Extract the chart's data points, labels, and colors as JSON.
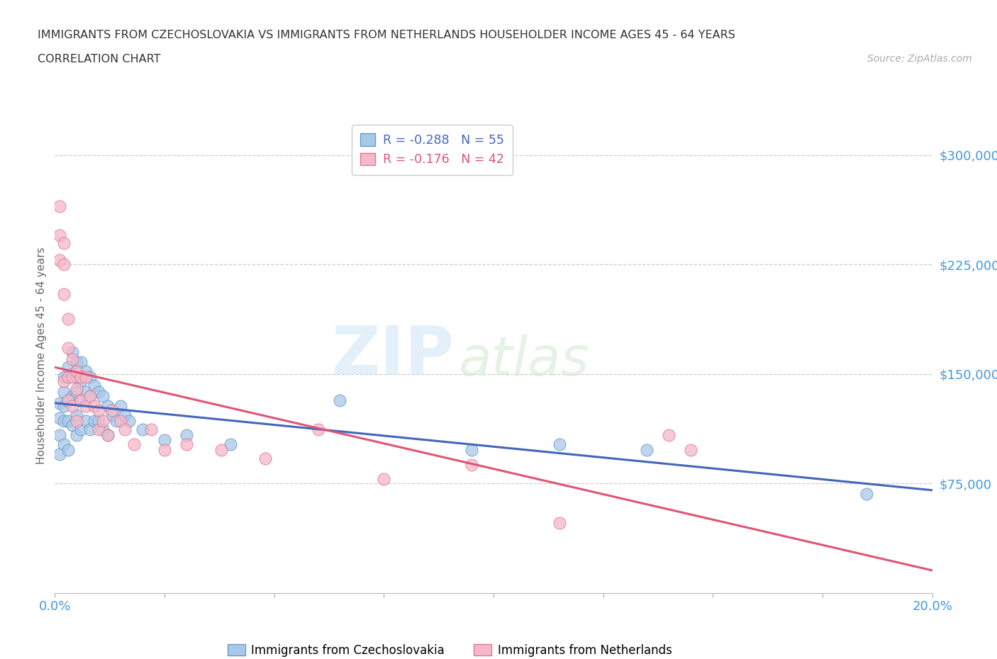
{
  "title_line1": "IMMIGRANTS FROM CZECHOSLOVAKIA VS IMMIGRANTS FROM NETHERLANDS HOUSEHOLDER INCOME AGES 45 - 64 YEARS",
  "title_line2": "CORRELATION CHART",
  "source_text": "Source: ZipAtlas.com",
  "ylabel": "Householder Income Ages 45 - 64 years",
  "xlim": [
    0.0,
    0.2
  ],
  "ylim": [
    0,
    325000
  ],
  "yticks": [
    75000,
    150000,
    225000,
    300000
  ],
  "ytick_labels": [
    "$75,000",
    "$150,000",
    "$225,000",
    "$300,000"
  ],
  "xticks": [
    0.0,
    0.025,
    0.05,
    0.075,
    0.1,
    0.125,
    0.15,
    0.175,
    0.2
  ],
  "xtick_labels_show": [
    "0.0%",
    "20.0%"
  ],
  "series": [
    {
      "name": "Immigrants from Czechoslovakia",
      "R": -0.288,
      "N": 55,
      "color": "#a8c8e8",
      "edge_color": "#6699cc",
      "line_color": "#4466bb",
      "x": [
        0.001,
        0.001,
        0.001,
        0.001,
        0.002,
        0.002,
        0.002,
        0.002,
        0.002,
        0.003,
        0.003,
        0.003,
        0.003,
        0.003,
        0.004,
        0.004,
        0.004,
        0.004,
        0.005,
        0.005,
        0.005,
        0.005,
        0.005,
        0.006,
        0.006,
        0.006,
        0.006,
        0.007,
        0.007,
        0.007,
        0.008,
        0.008,
        0.008,
        0.009,
        0.009,
        0.01,
        0.01,
        0.011,
        0.011,
        0.012,
        0.012,
        0.013,
        0.014,
        0.015,
        0.016,
        0.017,
        0.02,
        0.025,
        0.03,
        0.04,
        0.065,
        0.095,
        0.115,
        0.135,
        0.185
      ],
      "y": [
        130000,
        120000,
        108000,
        95000,
        148000,
        138000,
        128000,
        118000,
        102000,
        155000,
        148000,
        132000,
        118000,
        98000,
        165000,
        150000,
        135000,
        115000,
        158000,
        148000,
        138000,
        122000,
        108000,
        158000,
        145000,
        132000,
        112000,
        152000,
        138000,
        118000,
        148000,
        135000,
        112000,
        142000,
        118000,
        138000,
        118000,
        135000,
        112000,
        128000,
        108000,
        122000,
        118000,
        128000,
        122000,
        118000,
        112000,
        105000,
        108000,
        102000,
        132000,
        98000,
        102000,
        98000,
        68000
      ]
    },
    {
      "name": "Immigrants from Netherlands",
      "R": -0.176,
      "N": 42,
      "color": "#f5b8c8",
      "edge_color": "#dd7799",
      "line_color": "#e05575",
      "x": [
        0.001,
        0.001,
        0.001,
        0.002,
        0.002,
        0.002,
        0.002,
        0.003,
        0.003,
        0.003,
        0.003,
        0.004,
        0.004,
        0.004,
        0.005,
        0.005,
        0.005,
        0.006,
        0.006,
        0.007,
        0.007,
        0.008,
        0.009,
        0.01,
        0.01,
        0.011,
        0.012,
        0.013,
        0.015,
        0.016,
        0.018,
        0.022,
        0.025,
        0.03,
        0.038,
        0.048,
        0.06,
        0.075,
        0.095,
        0.115,
        0.14,
        0.145
      ],
      "y": [
        265000,
        245000,
        228000,
        240000,
        225000,
        205000,
        145000,
        188000,
        168000,
        148000,
        132000,
        160000,
        148000,
        128000,
        152000,
        140000,
        118000,
        148000,
        132000,
        148000,
        128000,
        135000,
        128000,
        125000,
        112000,
        118000,
        108000,
        125000,
        118000,
        112000,
        102000,
        112000,
        98000,
        102000,
        98000,
        92000,
        112000,
        78000,
        88000,
        48000,
        108000,
        98000
      ]
    }
  ],
  "watermark_zip": "ZIP",
  "watermark_atlas": "atlas",
  "background_color": "#ffffff",
  "grid_color": "#cccccc",
  "title_color": "#333333",
  "axis_label_color": "#666666",
  "ytick_color": "#4499dd",
  "xtick_color": "#4499dd"
}
